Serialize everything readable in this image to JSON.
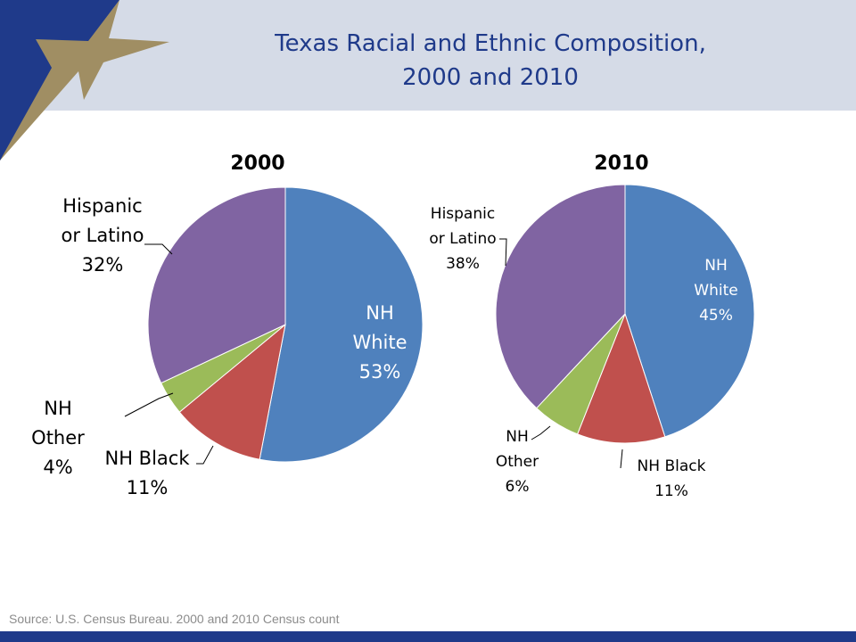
{
  "slide": {
    "title_line1": "Texas Racial and Ethnic Composition,",
    "title_line2": "2000 and 2010",
    "source": "Source: U.S. Census Bureau. 2000 and 2010 Census count"
  },
  "colors": {
    "nh_white": "#4f81bd",
    "nh_black": "#c0504d",
    "nh_other": "#9bbb59",
    "hispanic": "#8064a2",
    "title": "#1f3a8a",
    "header_band": "#d5dbe7",
    "logo_navy": "#1f3a8a",
    "logo_gold": "#a08e63"
  },
  "chart_data": [
    {
      "type": "pie",
      "title": "2000",
      "slices": [
        {
          "key": "nh_white",
          "label_lines": [
            "NH",
            "White",
            "53%"
          ],
          "value": 53
        },
        {
          "key": "nh_black",
          "label_lines": [
            "NH Black",
            "11%"
          ],
          "value": 11
        },
        {
          "key": "nh_other",
          "label_lines": [
            "NH",
            "Other",
            "4%"
          ],
          "value": 4
        },
        {
          "key": "hispanic",
          "label_lines": [
            "Hispanic",
            "or Latino",
            "32%"
          ],
          "value": 32
        }
      ]
    },
    {
      "type": "pie",
      "title": "2010",
      "slices": [
        {
          "key": "nh_white",
          "label_lines": [
            "NH",
            "White",
            "45%"
          ],
          "value": 45
        },
        {
          "key": "nh_black",
          "label_lines": [
            "NH Black",
            "11%"
          ],
          "value": 11
        },
        {
          "key": "nh_other",
          "label_lines": [
            "NH",
            "Other",
            "6%"
          ],
          "value": 6
        },
        {
          "key": "hispanic",
          "label_lines": [
            "Hispanic",
            "or Latino",
            "38%"
          ],
          "value": 38
        }
      ]
    }
  ]
}
